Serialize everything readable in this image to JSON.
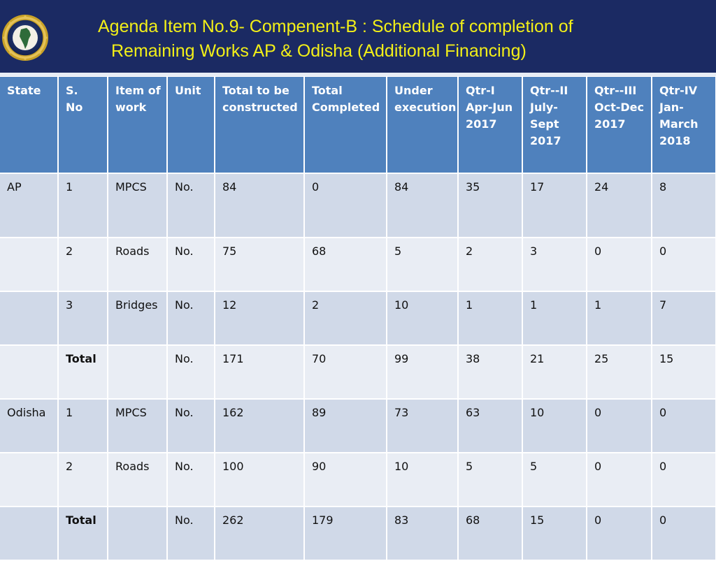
{
  "slide": {
    "title_line1": "Agenda Item No.9- Compenent-B : Schedule of completion of",
    "title_line2": "Remaining Works  AP & Odisha (Additional Financing)",
    "colors": {
      "header_bg": "#1b2a63",
      "title_text": "#f2ef18",
      "table_header_bg": "#4f81bd",
      "row_odd_bg": "#d0d9e8",
      "row_even_bg": "#e9edf4"
    },
    "logo_icon": "emblem-seal-icon"
  },
  "table": {
    "headers": [
      "State",
      "S.\nNo",
      "Item of\nwork",
      "Unit",
      "Total to be\nconstructed",
      "Total\nCompleted",
      "Under\nexecution",
      "Qtr-I\nApr-Jun\n2017",
      "Qtr--II\nJuly-\nSept\n2017",
      "Qtr--III\nOct-Dec\n2017",
      "Qtr-IV\nJan-\nMarch\n2018"
    ],
    "rows": [
      [
        "AP",
        "1",
        "MPCS",
        "No.",
        "84",
        "0",
        "84",
        "35",
        "17",
        "24",
        "8"
      ],
      [
        "",
        "2",
        "Roads",
        "No.",
        "75",
        "68",
        "5",
        "2",
        "3",
        "0",
        "0"
      ],
      [
        "",
        "3",
        "Bridges",
        "No.",
        "12",
        "2",
        "10",
        "1",
        "1",
        "1",
        "7"
      ],
      [
        "",
        "Total",
        "",
        "No.",
        "171",
        "70",
        "99",
        "38",
        "21",
        "25",
        "15"
      ],
      [
        "Odisha",
        "1",
        "MPCS",
        "No.",
        "162",
        "89",
        "73",
        "63",
        "10",
        "0",
        "0"
      ],
      [
        "",
        "2",
        "Roads",
        "No.",
        "100",
        "90",
        "10",
        "5",
        "5",
        "0",
        "0"
      ],
      [
        "",
        "Total",
        "",
        "No.",
        "262",
        "179",
        "83",
        "68",
        "15",
        "0",
        "0"
      ]
    ]
  }
}
